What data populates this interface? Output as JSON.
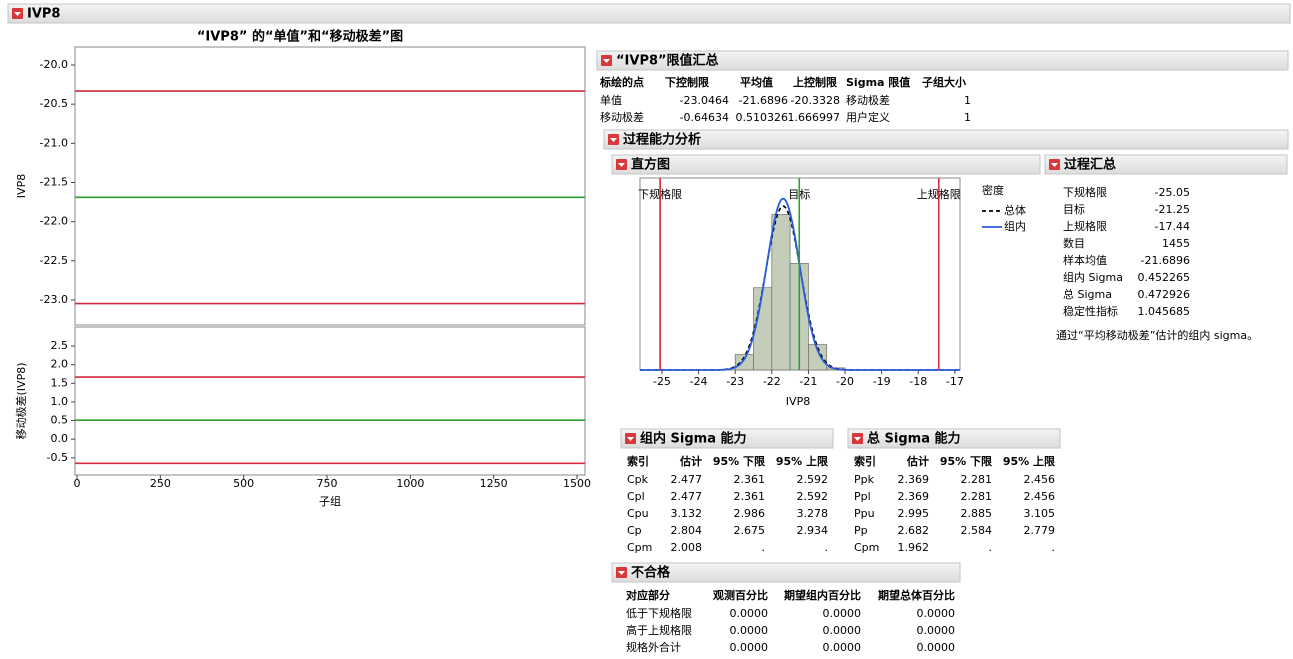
{
  "header": {
    "title": "IVP8"
  },
  "control_chart": {
    "title": "“IVP8” 的“单值”和“移动极差”图",
    "x_label": "子组",
    "xlim": [
      -6,
      1524
    ],
    "xticks": [
      0,
      250,
      500,
      750,
      1000,
      1250,
      1500
    ],
    "individual": {
      "y_label": "IVP8",
      "ylim": [
        -23.32,
        -19.77
      ],
      "yticks": [
        {
          "value": -20,
          "label": "-20.0"
        },
        -20.5,
        {
          "value": -21,
          "label": "-21.0"
        },
        -21.5,
        {
          "value": -22,
          "label": "-22.0"
        },
        -22.5,
        {
          "value": -23,
          "label": "-23.0"
        }
      ]
    },
    "moving_range": {
      "y_label": "移动极差(IVP8)",
      "ylim": [
        -0.96,
        3.01
      ],
      "yticks": [
        2.5,
        {
          "value": 2,
          "label": "2.0"
        },
        1.5,
        {
          "value": 1,
          "label": "1.0"
        },
        0.5,
        {
          "value": 0,
          "label": "0.0"
        },
        -0.5
      ]
    }
  },
  "limits_summary": {
    "title": "“IVP8”限值汇总",
    "columns": [
      "标绘的点",
      "下控制限",
      "平均值",
      "上控制限",
      "Sigma 限值",
      "子组大小"
    ],
    "rows": [
      [
        "单值",
        -23.0464,
        -21.6896,
        -20.3328,
        "移动极差",
        1
      ],
      [
        "移动极差",
        -0.64634,
        0.510326,
        1.666997,
        "用户定义",
        1
      ]
    ]
  },
  "capability": {
    "title": "过程能力分析"
  },
  "histogram": {
    "type": "histogram",
    "title": "直方图",
    "x_label": "IVP8",
    "xlim": [
      -25.6,
      -16.86
    ],
    "xticks": [
      -25,
      -24,
      -23,
      -22,
      -21,
      -20,
      -19,
      -18,
      -17
    ],
    "bins": [
      -23,
      -22.5,
      -22,
      -21.5,
      -21,
      -20.5,
      -20
    ],
    "counts": [
      58,
      308,
      582,
      399,
      95,
      8
    ],
    "color": "#c4ccba",
    "spec_labels": [
      "下规格限",
      "目标",
      "上规格限"
    ],
    "legend": {
      "title": "密度",
      "series": [
        {
          "name": "总体",
          "color": "#000000"
        },
        {
          "name": "组内",
          "color": "#2a5bd7"
        }
      ]
    }
  },
  "process_summary": {
    "title": "过程汇总",
    "items": [
      {
        "label": "下规格限",
        "value": -25.05
      },
      {
        "label": "目标",
        "value": -21.25
      },
      {
        "label": "上规格限",
        "value": -17.44
      },
      {
        "label": "数目",
        "value": 1455
      },
      {
        "label": "样本均值",
        "value": -21.6896
      },
      {
        "label": "组内 Sigma",
        "value": 0.452265
      },
      {
        "label": "总 Sigma",
        "value": 0.472926
      },
      {
        "label": "稳定性指标",
        "value": 1.045685
      }
    ],
    "note": "通过“平均移动极差”估计的组内 sigma。"
  },
  "within_sigma": {
    "title": "组内 Sigma 能力",
    "columns": [
      "索引",
      "估计",
      "95% 下限",
      "95% 上限"
    ],
    "rows": [
      [
        "Cpk",
        2.477,
        2.361,
        2.592
      ],
      [
        "Cpl",
        2.477,
        2.361,
        2.592
      ],
      [
        "Cpu",
        3.132,
        2.986,
        3.278
      ],
      [
        "Cp",
        2.804,
        2.675,
        2.934
      ],
      [
        "Cpm",
        2.008,
        ".",
        "."
      ]
    ]
  },
  "overall_sigma": {
    "title": "总 Sigma 能力",
    "columns": [
      "索引",
      "估计",
      "95% 下限",
      "95% 上限"
    ],
    "rows": [
      [
        "Ppk",
        2.369,
        2.281,
        2.456
      ],
      [
        "Ppl",
        2.369,
        2.281,
        2.456
      ],
      [
        "Ppu",
        2.995,
        2.885,
        3.105
      ],
      [
        "Pp",
        2.682,
        2.584,
        2.779
      ],
      [
        "Cpm",
        1.962,
        ".",
        "."
      ]
    ]
  },
  "nonconformance": {
    "title": "不合格",
    "columns": [
      "对应部分",
      "观测百分比",
      "期望组内百分比",
      "期望总体百分比"
    ],
    "rows": [
      [
        "低于下规格限",
        "0.0000",
        "0.0000",
        "0.0000"
      ],
      [
        "高于上规格限",
        "0.0000",
        "0.0000",
        "0.0000"
      ],
      [
        "规格外合计",
        "0.0000",
        "0.0000",
        "0.0000"
      ]
    ]
  }
}
